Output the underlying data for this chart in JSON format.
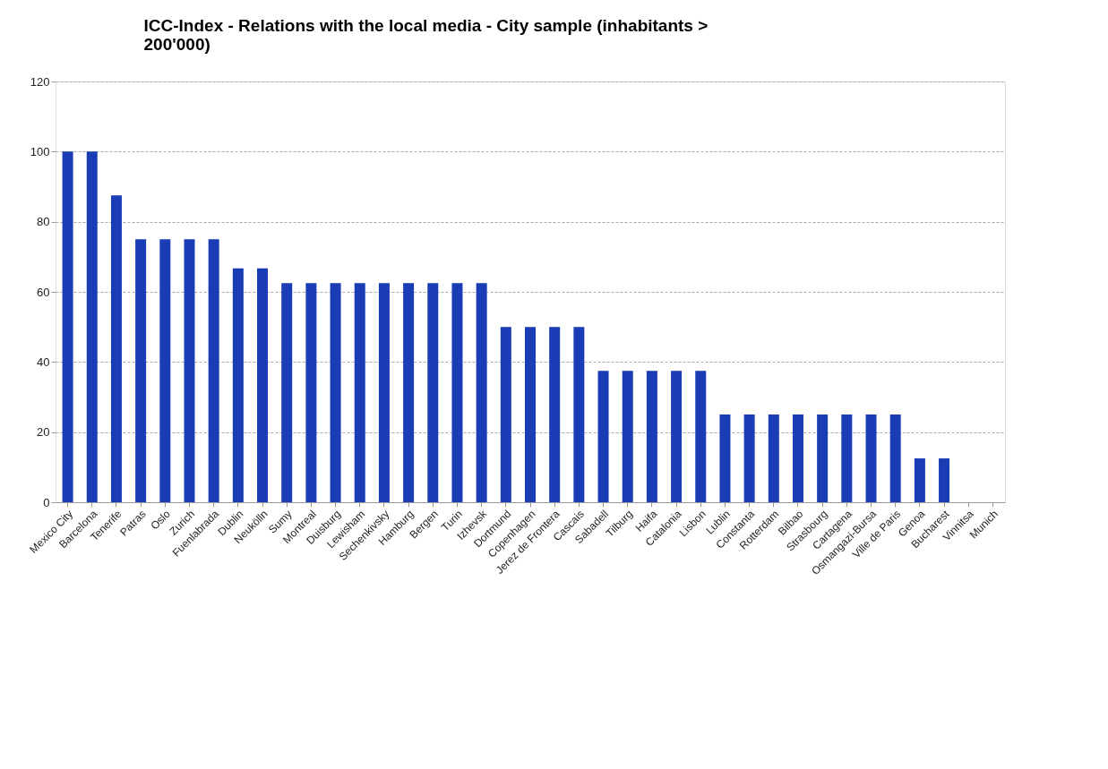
{
  "chart_data": {
    "type": "bar",
    "title": "ICC-Index - Relations with the  local media - City sample (inhabitants > 200'000)",
    "categories": [
      "Mexico City",
      "Barcelona",
      "Tenerife",
      "Patras",
      "Oslo",
      "Zurich",
      "Fuenlabrada",
      "Dublin",
      "Neukölln",
      "Sumy",
      "Montreal",
      "Duisburg",
      "Lewisham",
      "Sechenkivsky",
      "Hamburg",
      "Bergen",
      "Turin",
      "Izhevsk",
      "Dortmund",
      "Copenhagen",
      "Jerez de Frontera",
      "Cascais",
      "Sabadell",
      "Tilburg",
      "Haifa",
      "Catalonia",
      "Lisbon",
      "Lublin",
      "Constanta",
      "Rotterdam",
      "Bilbao",
      "Strasbourg",
      "Cartagena",
      "Osmangazi-Bursa",
      "Ville de Paris",
      "Genoa",
      "Bucharest",
      "Vinnitsa",
      "Munich"
    ],
    "values": [
      100,
      100,
      87.5,
      75,
      75,
      75,
      75,
      66.7,
      66.7,
      62.5,
      62.5,
      62.5,
      62.5,
      62.5,
      62.5,
      62.5,
      62.5,
      62.5,
      50,
      50,
      50,
      50,
      37.5,
      37.5,
      37.5,
      37.5,
      37.5,
      25,
      25,
      25,
      25,
      25,
      25,
      25,
      25,
      12.5,
      12.5,
      0,
      0
    ],
    "color": "#1a3cb4",
    "ylim": [
      0,
      120
    ],
    "yticks": [
      0,
      20,
      40,
      60,
      80,
      100,
      120
    ],
    "grid": "y"
  }
}
